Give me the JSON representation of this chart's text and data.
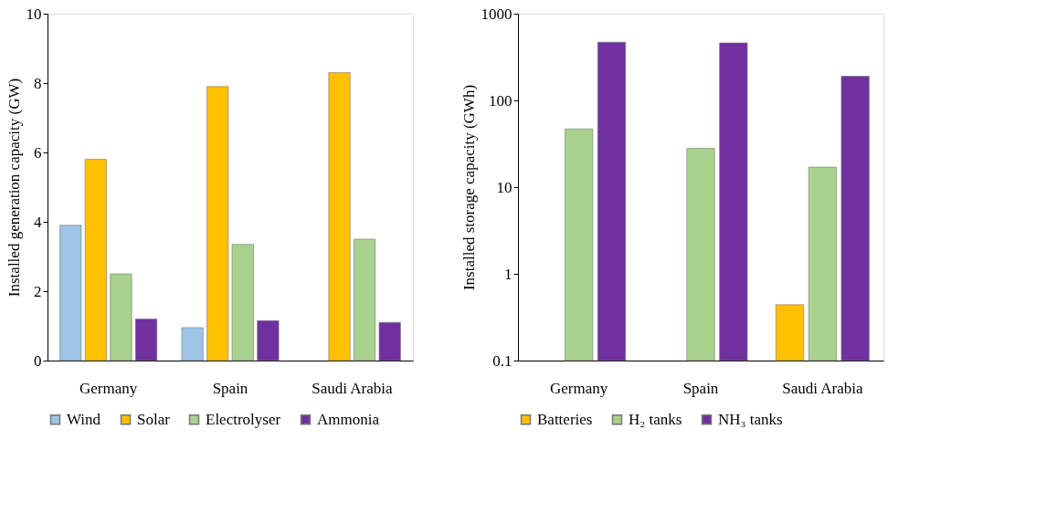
{
  "chart_data": [
    {
      "type": "bar",
      "categories": [
        "Germany",
        "Spain",
        "Saudi Arabia"
      ],
      "ylabel": "Installed generation capacity (GW)",
      "ylim": [
        0,
        10
      ],
      "yticks": [
        0,
        2,
        4,
        6,
        8,
        10
      ],
      "legend": "bottom",
      "grid": false,
      "series": [
        {
          "name": "Wind",
          "color": "#9dc3e6",
          "values": [
            3.9,
            0.95,
            null
          ]
        },
        {
          "name": "Solar",
          "color": "#ffc000",
          "values": [
            5.8,
            7.9,
            8.3
          ]
        },
        {
          "name": "Electrolyser",
          "color": "#a9d18e",
          "values": [
            2.5,
            3.35,
            3.5
          ]
        },
        {
          "name": "Ammonia",
          "color": "#7030a0",
          "values": [
            1.2,
            1.15,
            1.1
          ]
        }
      ]
    },
    {
      "type": "bar",
      "categories": [
        "Germany",
        "Spain",
        "Saudi Arabia"
      ],
      "ylabel": "Installed storage capacity (GWh)",
      "ylim": [
        0.1,
        1000
      ],
      "yticks": [
        0.1,
        1,
        10,
        100,
        1000
      ],
      "log": true,
      "legend": "bottom",
      "grid": false,
      "series": [
        {
          "name": "Batteries",
          "color": "#ffc000",
          "values": [
            null,
            null,
            0.44
          ]
        },
        {
          "name": "H₂ tanks",
          "color": "#a9d18e",
          "values": [
            47,
            28,
            17
          ]
        },
        {
          "name": "NH₃ tanks",
          "color": "#7030a0",
          "values": [
            470,
            460,
            190
          ]
        }
      ]
    }
  ]
}
